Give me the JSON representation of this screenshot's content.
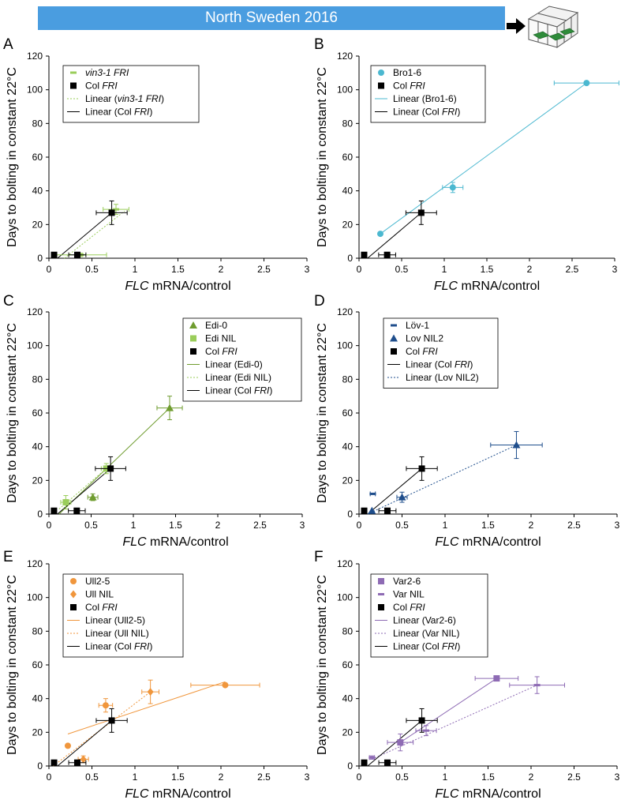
{
  "banner": {
    "title": "North Sweden 2016"
  },
  "greenhouse_icon": "greenhouse-icon",
  "arrow_icon": "arrow-right-icon",
  "chart_data": [
    {
      "panel": "A",
      "type": "scatter",
      "xlim": [
        0,
        3
      ],
      "ylim": [
        0,
        120
      ],
      "xticks": [
        "0",
        "0.5",
        "1",
        "1.5",
        "2",
        "2.5",
        "3"
      ],
      "yticks": [
        "0",
        "20",
        "40",
        "60",
        "80",
        "100",
        "120"
      ],
      "xlabel_italic": "FLC",
      "xlabel_rest": " mRNA/control",
      "ylabel": "Days to bolting in constant 22°C",
      "series": [
        {
          "name": "vin3-1 FRI",
          "marker": "dash",
          "color": "#9acd5a",
          "points": [
            {
              "x": 0.37,
              "y": 2,
              "xerr": 0.3,
              "yerr": 1
            },
            {
              "x": 0.78,
              "y": 29,
              "xerr": 0.15,
              "yerr": 3
            }
          ]
        },
        {
          "name": "Col FRI",
          "marker": "square",
          "color": "#000000",
          "points": [
            {
              "x": 0.06,
              "y": 2,
              "xerr": 0,
              "yerr": 0
            },
            {
              "x": 0.33,
              "y": 2,
              "xerr": 0.1,
              "yerr": 0
            },
            {
              "x": 0.73,
              "y": 27,
              "xerr": 0.18,
              "yerr": 7
            }
          ]
        }
      ],
      "lines": [
        {
          "name": "Linear (vin3-1 FRI)",
          "color": "#9acd5a",
          "dash": true,
          "from": [
            0.18,
            0
          ],
          "to": [
            0.88,
            28
          ]
        },
        {
          "name": "Linear (Col FRI)",
          "color": "#000000",
          "dash": false,
          "from": [
            0.1,
            0
          ],
          "to": [
            0.73,
            27
          ]
        }
      ],
      "legend": [
        {
          "sym": "dash",
          "color": "#9acd5a",
          "label": "vin3-1 FRI",
          "italic_all": true
        },
        {
          "sym": "square",
          "color": "#000000",
          "label": "Col ",
          "italic": "FRI"
        },
        {
          "sym": "dline",
          "color": "#9acd5a",
          "label": "Linear (",
          "italic": "vin3-1 FRI",
          "tail": ")"
        },
        {
          "sym": "line",
          "color": "#000000",
          "label": "Linear (Col ",
          "italic": "FRI",
          "tail": ")"
        }
      ]
    },
    {
      "panel": "B",
      "type": "scatter",
      "xlim": [
        0,
        3
      ],
      "ylim": [
        0,
        120
      ],
      "xticks": [
        "0",
        "0.5",
        "1",
        "1.5",
        "2",
        "2.5",
        "3"
      ],
      "yticks": [
        "0",
        "20",
        "40",
        "60",
        "80",
        "100",
        "120"
      ],
      "xlabel_italic": "FLC",
      "xlabel_rest": " mRNA/control",
      "ylabel": "Days to bolting in constant 22°C",
      "series": [
        {
          "name": "Bro1-6",
          "marker": "circle",
          "color": "#4bb8d0",
          "points": [
            {
              "x": 0.25,
              "y": 14.5,
              "xerr": 0,
              "yerr": 0
            },
            {
              "x": 1.1,
              "y": 42,
              "xerr": 0.12,
              "yerr": 3
            },
            {
              "x": 2.67,
              "y": 104,
              "xerr": 0.38,
              "yerr": 0
            }
          ]
        },
        {
          "name": "Col FRI",
          "marker": "square",
          "color": "#000000",
          "points": [
            {
              "x": 0.06,
              "y": 2,
              "xerr": 0,
              "yerr": 0
            },
            {
              "x": 0.33,
              "y": 2,
              "xerr": 0.1,
              "yerr": 0
            },
            {
              "x": 0.73,
              "y": 27,
              "xerr": 0.18,
              "yerr": 7
            }
          ]
        }
      ],
      "lines": [
        {
          "name": "Linear (Bro1-6)",
          "color": "#4bb8d0",
          "dash": false,
          "from": [
            0.25,
            14.5
          ],
          "to": [
            2.67,
            104
          ]
        },
        {
          "name": "Linear (Col FRI)",
          "color": "#000000",
          "dash": false,
          "from": [
            0.1,
            0
          ],
          "to": [
            0.73,
            27
          ]
        }
      ],
      "legend": [
        {
          "sym": "circle",
          "color": "#4bb8d0",
          "label": "Bro1-6"
        },
        {
          "sym": "square",
          "color": "#000000",
          "label": "Col ",
          "italic": "FRI"
        },
        {
          "sym": "line",
          "color": "#4bb8d0",
          "label": "Linear (Bro1-6)"
        },
        {
          "sym": "line",
          "color": "#000000",
          "label": "Linear (Col ",
          "italic": "FRI",
          "tail": ")"
        }
      ]
    },
    {
      "panel": "C",
      "type": "scatter",
      "xlim": [
        0,
        3
      ],
      "ylim": [
        0,
        120
      ],
      "xticks": [
        "0",
        "0.5",
        "1",
        "1.5",
        "2",
        "2.5",
        "3"
      ],
      "yticks": [
        "0",
        "20",
        "40",
        "60",
        "80",
        "100",
        "120"
      ],
      "xlabel_italic": "FLC",
      "xlabel_rest": " mRNA/control",
      "ylabel": "Days to bolting in constant 22°C",
      "series": [
        {
          "name": "Edi-0",
          "marker": "triangle",
          "color": "#6f9c2f",
          "points": [
            {
              "x": 1.43,
              "y": 63,
              "xerr": 0.15,
              "yerr": 7
            },
            {
              "x": 0.52,
              "y": 10,
              "xerr": 0.06,
              "yerr": 2
            }
          ]
        },
        {
          "name": "Edi NIL",
          "marker": "square",
          "color": "#9acd5a",
          "points": [
            {
              "x": 0.2,
              "y": 7,
              "xerr": 0.06,
              "yerr": 4
            },
            {
              "x": 0.68,
              "y": 27,
              "xerr": 0.06,
              "yerr": 3
            }
          ]
        },
        {
          "name": "Col FRI",
          "marker": "square",
          "color": "#000000",
          "points": [
            {
              "x": 0.06,
              "y": 2,
              "xerr": 0,
              "yerr": 0
            },
            {
              "x": 0.33,
              "y": 2,
              "xerr": 0.1,
              "yerr": 0
            },
            {
              "x": 0.73,
              "y": 27,
              "xerr": 0.18,
              "yerr": 7
            }
          ]
        }
      ],
      "lines": [
        {
          "name": "Linear (Edi-0)",
          "color": "#6f9c2f",
          "dash": false,
          "from": [
            0.12,
            0
          ],
          "to": [
            1.43,
            63
          ]
        },
        {
          "name": "Linear (Edi NIL)",
          "color": "#9acd5a",
          "dash": true,
          "from": [
            0.12,
            3
          ],
          "to": [
            0.68,
            27
          ]
        },
        {
          "name": "Linear (Col FRI)",
          "color": "#000000",
          "dash": false,
          "from": [
            0.1,
            0
          ],
          "to": [
            0.73,
            27
          ]
        }
      ],
      "legend": [
        {
          "sym": "triangle",
          "color": "#6f9c2f",
          "label": "Edi-0"
        },
        {
          "sym": "square",
          "color": "#9acd5a",
          "label": "Edi NIL"
        },
        {
          "sym": "square",
          "color": "#000000",
          "label": "Col ",
          "italic": "FRI"
        },
        {
          "sym": "line",
          "color": "#6f9c2f",
          "label": "Linear (Edi-0)"
        },
        {
          "sym": "dline",
          "color": "#9acd5a",
          "label": "Linear (Edi NIL)"
        },
        {
          "sym": "line",
          "color": "#000000",
          "label": "Linear (Col ",
          "italic": "FRI",
          "tail": ")"
        }
      ]
    },
    {
      "panel": "D",
      "type": "scatter",
      "xlim": [
        0,
        3
      ],
      "ylim": [
        0,
        120
      ],
      "xticks": [
        "0",
        "0.5",
        "1",
        "1.5",
        "2",
        "2.5",
        "3"
      ],
      "yticks": [
        "0",
        "20",
        "40",
        "60",
        "80",
        "100",
        "120"
      ],
      "xlabel_italic": "FLC",
      "xlabel_rest": " mRNA/control",
      "ylabel": "Days to bolting in constant 22°C",
      "series": [
        {
          "name": "Löv-1",
          "marker": "dash",
          "color": "#1f4e8c",
          "points": [
            {
              "x": 0.16,
              "y": 12,
              "xerr": 0.03,
              "yerr": 0
            }
          ]
        },
        {
          "name": "Lov NIL2",
          "marker": "triangle",
          "color": "#1f4e8c",
          "points": [
            {
              "x": 1.83,
              "y": 41,
              "xerr": 0.3,
              "yerr": 8
            },
            {
              "x": 0.5,
              "y": 10,
              "xerr": 0.06,
              "yerr": 3
            },
            {
              "x": 0.15,
              "y": 2,
              "xerr": 0,
              "yerr": 0
            }
          ]
        },
        {
          "name": "Col FRI",
          "marker": "square",
          "color": "#000000",
          "points": [
            {
              "x": 0.06,
              "y": 2,
              "xerr": 0,
              "yerr": 0
            },
            {
              "x": 0.33,
              "y": 2,
              "xerr": 0.1,
              "yerr": 0
            },
            {
              "x": 0.73,
              "y": 27,
              "xerr": 0.18,
              "yerr": 7
            }
          ]
        }
      ],
      "lines": [
        {
          "name": "Linear (Col FRI)",
          "color": "#000000",
          "dash": false,
          "from": [
            0.1,
            0
          ],
          "to": [
            0.73,
            27
          ]
        },
        {
          "name": "Linear (Lov NIL2)",
          "color": "#1f4e8c",
          "dash": true,
          "from": [
            0.1,
            0
          ],
          "to": [
            1.83,
            41
          ]
        }
      ],
      "legend": [
        {
          "sym": "dash",
          "color": "#1f4e8c",
          "label": "Löv-1"
        },
        {
          "sym": "triangle",
          "color": "#1f4e8c",
          "label": "Lov NIL2"
        },
        {
          "sym": "square",
          "color": "#000000",
          "label": "Col ",
          "italic": "FRI"
        },
        {
          "sym": "line",
          "color": "#000000",
          "label": "Linear (Col ",
          "italic": "FRI",
          "tail": ")"
        },
        {
          "sym": "dline",
          "color": "#1f4e8c",
          "label": "Linear (Lov NIL2)"
        }
      ]
    },
    {
      "panel": "E",
      "type": "scatter",
      "xlim": [
        0,
        3
      ],
      "ylim": [
        0,
        120
      ],
      "xticks": [
        "0",
        "0.5",
        "1",
        "1.5",
        "2",
        "2.5",
        "3"
      ],
      "yticks": [
        "0",
        "20",
        "40",
        "60",
        "80",
        "100",
        "120"
      ],
      "xlabel_italic": "FLC",
      "xlabel_rest": " mRNA/control",
      "ylabel": "Days to bolting in constant 22°C",
      "series": [
        {
          "name": "Ull2-5",
          "marker": "circle",
          "color": "#f0963c",
          "points": [
            {
              "x": 0.22,
              "y": 12,
              "xerr": 0,
              "yerr": 0
            },
            {
              "x": 0.66,
              "y": 36,
              "xerr": 0.08,
              "yerr": 4
            },
            {
              "x": 2.05,
              "y": 48,
              "xerr": 0.4,
              "yerr": 0
            }
          ]
        },
        {
          "name": "Ull NIL",
          "marker": "diamond",
          "color": "#f0963c",
          "points": [
            {
              "x": 0.4,
              "y": 4,
              "xerr": 0.06,
              "yerr": 2
            },
            {
              "x": 1.18,
              "y": 44,
              "xerr": 0.1,
              "yerr": 7
            }
          ]
        },
        {
          "name": "Col FRI",
          "marker": "square",
          "color": "#000000",
          "points": [
            {
              "x": 0.06,
              "y": 2,
              "xerr": 0,
              "yerr": 0
            },
            {
              "x": 0.33,
              "y": 2,
              "xerr": 0.1,
              "yerr": 0
            },
            {
              "x": 0.73,
              "y": 27,
              "xerr": 0.18,
              "yerr": 7
            }
          ]
        }
      ],
      "lines": [
        {
          "name": "Linear (Ull2-5)",
          "color": "#f0963c",
          "dash": false,
          "from": [
            0.22,
            19
          ],
          "to": [
            2.05,
            50
          ]
        },
        {
          "name": "Linear (Ull NIL)",
          "color": "#f0963c",
          "dash": true,
          "from": [
            0.05,
            0
          ],
          "to": [
            1.18,
            44
          ]
        },
        {
          "name": "Linear (Col FRI)",
          "color": "#000000",
          "dash": false,
          "from": [
            0.1,
            0
          ],
          "to": [
            0.73,
            27
          ]
        }
      ],
      "legend": [
        {
          "sym": "circle",
          "color": "#f0963c",
          "label": "Ull2-5"
        },
        {
          "sym": "diamond",
          "color": "#f0963c",
          "label": "Ull NIL"
        },
        {
          "sym": "square",
          "color": "#000000",
          "label": "Col ",
          "italic": "FRI"
        },
        {
          "sym": "line",
          "color": "#f0963c",
          "label": "Linear (Ull2-5)"
        },
        {
          "sym": "dline",
          "color": "#f0963c",
          "label": "Linear (Ull NIL)"
        },
        {
          "sym": "line",
          "color": "#000000",
          "label": "Linear (Col ",
          "italic": "FRI",
          "tail": ")"
        }
      ]
    },
    {
      "panel": "F",
      "type": "scatter",
      "xlim": [
        0,
        3
      ],
      "ylim": [
        0,
        120
      ],
      "xticks": [
        "0",
        "0.5",
        "1",
        "1.5",
        "2",
        "2.5",
        "3"
      ],
      "yticks": [
        "0",
        "20",
        "40",
        "60",
        "80",
        "100",
        "120"
      ],
      "xlabel_italic": "FLC",
      "xlabel_rest": " mRNA/control",
      "ylabel": "Days to bolting in constant 22°C",
      "series": [
        {
          "name": "Var2-6",
          "marker": "square",
          "color": "#8e6bb4",
          "points": [
            {
              "x": 0.48,
              "y": 14,
              "xerr": 0.15,
              "yerr": 5
            },
            {
              "x": 1.6,
              "y": 52,
              "xerr": 0.25,
              "yerr": 0
            }
          ]
        },
        {
          "name": "Var NIL",
          "marker": "dash",
          "color": "#8e6bb4",
          "points": [
            {
              "x": 0.15,
              "y": 5,
              "xerr": 0.03,
              "yerr": 1
            },
            {
              "x": 0.78,
              "y": 21,
              "xerr": 0.12,
              "yerr": 3
            },
            {
              "x": 2.07,
              "y": 48,
              "xerr": 0.32,
              "yerr": 5
            }
          ]
        },
        {
          "name": "Col FRI",
          "marker": "square",
          "color": "#000000",
          "points": [
            {
              "x": 0.06,
              "y": 2,
              "xerr": 0,
              "yerr": 0
            },
            {
              "x": 0.33,
              "y": 2,
              "xerr": 0.1,
              "yerr": 0
            },
            {
              "x": 0.73,
              "y": 27,
              "xerr": 0.18,
              "yerr": 7
            }
          ]
        }
      ],
      "lines": [
        {
          "name": "Linear (Var2-6)",
          "color": "#8e6bb4",
          "dash": false,
          "from": [
            0.48,
            14
          ],
          "to": [
            1.6,
            52
          ]
        },
        {
          "name": "Linear (Var NIL)",
          "color": "#8e6bb4",
          "dash": true,
          "from": [
            0.15,
            4
          ],
          "to": [
            2.07,
            48
          ]
        },
        {
          "name": "Linear (Col FRI)",
          "color": "#000000",
          "dash": false,
          "from": [
            0.1,
            0
          ],
          "to": [
            0.73,
            27
          ]
        }
      ],
      "legend": [
        {
          "sym": "square",
          "color": "#8e6bb4",
          "label": "Var2-6"
        },
        {
          "sym": "dash",
          "color": "#8e6bb4",
          "label": "Var NIL"
        },
        {
          "sym": "square",
          "color": "#000000",
          "label": "Col ",
          "italic": "FRI"
        },
        {
          "sym": "line",
          "color": "#8e6bb4",
          "label": "Linear (Var2-6)"
        },
        {
          "sym": "dline",
          "color": "#8e6bb4",
          "label": "Linear (Var NIL)"
        },
        {
          "sym": "line",
          "color": "#000000",
          "label": "Linear (Col ",
          "italic": "FRI",
          "tail": ")"
        }
      ]
    }
  ]
}
